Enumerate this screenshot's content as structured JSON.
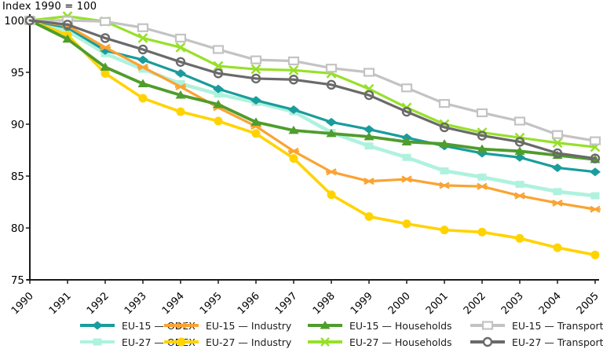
{
  "chart_data": {
    "type": "line",
    "title": "Index 1990 = 100",
    "x": [
      1990,
      1991,
      1992,
      1993,
      1994,
      1995,
      1996,
      1997,
      1998,
      1999,
      2000,
      2001,
      2002,
      2003,
      2004,
      2005
    ],
    "yticks": [
      75,
      80,
      85,
      90,
      95,
      100
    ],
    "ylim": [
      75,
      100.6
    ],
    "grid": false,
    "legend_position": "bottom",
    "axis_color": "#1a1a1a",
    "series": [
      {
        "name": "EU-15 — ODEX",
        "slug": "eu15-odex",
        "color": "#1A9C9C",
        "marker": "diamond",
        "line_width": 3.2,
        "z": 2,
        "legend_row": 0,
        "legend_col": 0,
        "values": [
          100,
          99.3,
          97.1,
          96.2,
          94.9,
          93.4,
          92.3,
          91.4,
          90.2,
          89.5,
          88.7,
          87.9,
          87.2,
          86.8,
          85.8,
          85.4
        ]
      },
      {
        "name": "EU-27 — ODEX",
        "slug": "eu27-odex",
        "color": "#AEF2DE",
        "marker": "square-filled",
        "line_width": 4.6,
        "z": 1,
        "legend_row": 1,
        "legend_col": 0,
        "values": [
          100,
          99.0,
          96.8,
          95.3,
          93.9,
          92.9,
          92.1,
          91.2,
          89.2,
          87.9,
          86.8,
          85.5,
          84.9,
          84.2,
          83.5,
          83.1
        ]
      },
      {
        "name": "EU-15 — Industry",
        "slug": "eu15-industry",
        "color": "#FAA332",
        "marker": "star6",
        "line_width": 3.2,
        "z": 3,
        "legend_row": 0,
        "legend_col": 1,
        "values": [
          100,
          99.5,
          97.4,
          95.5,
          93.6,
          91.6,
          89.8,
          87.4,
          85.4,
          84.5,
          84.7,
          84.1,
          84.0,
          83.1,
          82.4,
          81.8
        ]
      },
      {
        "name": "EU-27 — Industry",
        "slug": "eu27-industry",
        "color": "#FFD300",
        "marker": "circle-filled",
        "line_width": 3.6,
        "z": 4,
        "legend_row": 1,
        "legend_col": 1,
        "values": [
          100,
          98.6,
          94.9,
          92.5,
          91.2,
          90.3,
          89.1,
          86.7,
          83.2,
          81.1,
          80.4,
          79.8,
          79.6,
          79.0,
          78.1,
          77.4
        ]
      },
      {
        "name": "EU-15 — Households",
        "slug": "eu15-households",
        "color": "#4F9D2C",
        "marker": "triangle",
        "line_width": 3.8,
        "z": 5,
        "legend_row": 0,
        "legend_col": 2,
        "values": [
          100,
          98.2,
          95.5,
          93.9,
          92.8,
          91.9,
          90.2,
          89.4,
          89.1,
          88.8,
          88.3,
          88.1,
          87.6,
          87.4,
          87.0,
          86.6
        ]
      },
      {
        "name": "EU-27 — Households",
        "slug": "eu27-households",
        "color": "#97E02A",
        "marker": "x",
        "line_width": 3.2,
        "z": 6,
        "legend_row": 1,
        "legend_col": 2,
        "values": [
          100,
          100.4,
          99.9,
          98.3,
          97.4,
          95.6,
          95.3,
          95.2,
          94.9,
          93.4,
          91.6,
          90.0,
          89.2,
          88.7,
          88.2,
          87.8
        ]
      },
      {
        "name": "EU-15 — Transport",
        "slug": "eu15-transport",
        "color": "#C3C3C3",
        "marker": "square-open",
        "line_width": 3.2,
        "z": 7,
        "legend_row": 0,
        "legend_col": 3,
        "values": [
          100,
          100.0,
          99.9,
          99.3,
          98.3,
          97.2,
          96.2,
          96.1,
          95.4,
          95.0,
          93.5,
          92.0,
          91.1,
          90.3,
          89.0,
          88.4
        ]
      },
      {
        "name": "EU-27 — Transport",
        "slug": "eu27-transport",
        "color": "#6A6A6A",
        "marker": "circle-open",
        "line_width": 3.2,
        "z": 8,
        "legend_row": 1,
        "legend_col": 3,
        "values": [
          100,
          99.6,
          98.3,
          97.2,
          96.0,
          94.9,
          94.4,
          94.3,
          93.8,
          92.8,
          91.2,
          89.7,
          88.9,
          88.3,
          87.2,
          86.7
        ]
      }
    ]
  }
}
